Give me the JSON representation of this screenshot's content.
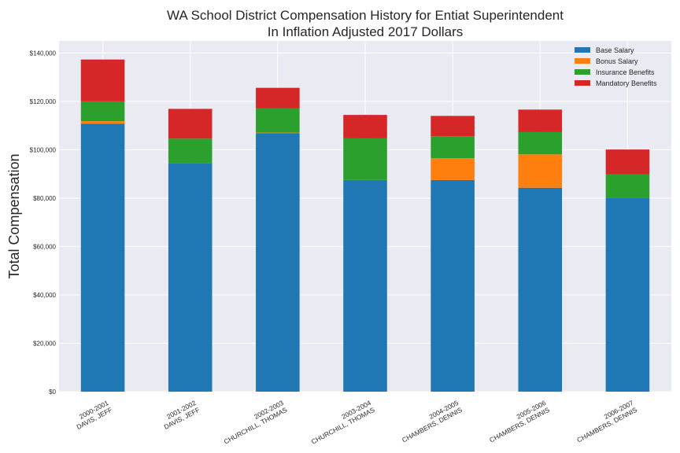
{
  "chart_data": {
    "type": "bar",
    "stacked": true,
    "title": "WA School District Compensation History for Entiat Superintendent",
    "subtitle": "In Inflation Adjusted 2017 Dollars",
    "xlabel": "",
    "ylabel": "Total Compensation",
    "ylim": [
      0,
      145000
    ],
    "yticks": [
      0,
      20000,
      40000,
      60000,
      80000,
      100000,
      120000,
      140000
    ],
    "ytick_labels": [
      "$0",
      "$20,000",
      "$40,000",
      "$60,000",
      "$80,000",
      "$100,000",
      "$120,000",
      "$140,000"
    ],
    "grid": true,
    "legend_position": "top-right",
    "categories": [
      [
        "2000-2001",
        "DAVIS, JEFF"
      ],
      [
        "2001-2002",
        "DAVIS, JEFF"
      ],
      [
        "2002-2003",
        "CHURCHILL, THOMAS"
      ],
      [
        "2003-2004",
        "CHURCHILL, THOMAS"
      ],
      [
        "2004-2005",
        "CHAMBERS, DENNIS"
      ],
      [
        "2005-2006",
        "CHAMBERS, DENNIS"
      ],
      [
        "2006-2007",
        "CHAMBERS, DENNIS"
      ]
    ],
    "series": [
      {
        "name": "Base Salary",
        "color": "#1f77b4",
        "values": [
          110800,
          94500,
          106800,
          87500,
          87500,
          84300,
          80000
        ]
      },
      {
        "name": "Bonus Salary",
        "color": "#ff7f0e",
        "values": [
          1000,
          0,
          300,
          0,
          9000,
          13800,
          0
        ]
      },
      {
        "name": "Insurance Benefits",
        "color": "#2ca02c",
        "values": [
          8200,
          10100,
          10100,
          17200,
          9100,
          9200,
          9900
        ]
      },
      {
        "name": "Mandatory Benefits",
        "color": "#d62728",
        "values": [
          17300,
          12300,
          8400,
          9700,
          8400,
          9300,
          10200
        ]
      }
    ]
  }
}
